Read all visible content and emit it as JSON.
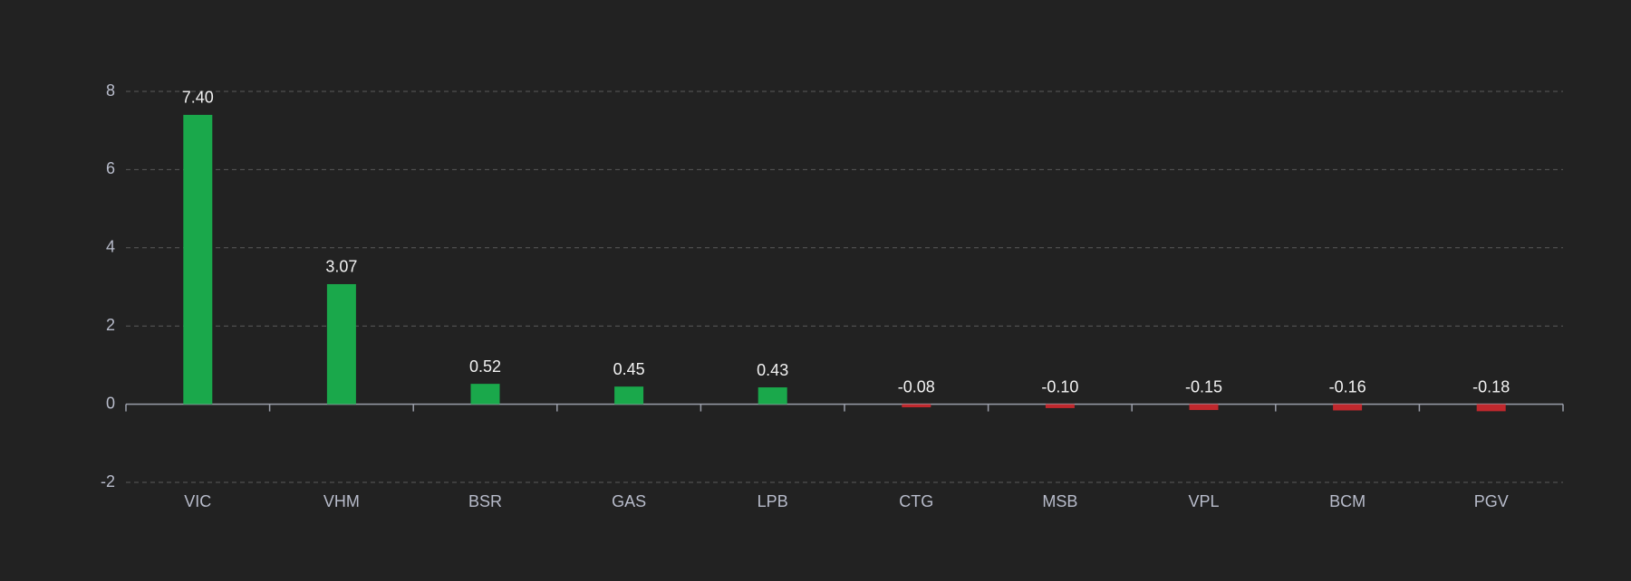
{
  "chart_data": {
    "type": "bar",
    "categories": [
      "VIC",
      "VHM",
      "BSR",
      "GAS",
      "LPB",
      "CTG",
      "MSB",
      "VPL",
      "BCM",
      "PGV"
    ],
    "values": [
      7.4,
      3.07,
      0.52,
      0.45,
      0.43,
      -0.08,
      -0.1,
      -0.15,
      -0.16,
      -0.18
    ],
    "value_labels": [
      "7.40",
      "3.07",
      "0.52",
      "0.45",
      "0.43",
      "-0.08",
      "-0.10",
      "-0.15",
      "-0.16",
      "-0.18"
    ],
    "positive_color": "#1aa84b",
    "negative_color": "#c0282d",
    "ylim": [
      -2,
      8
    ],
    "yticks": [
      -2,
      0,
      2,
      4,
      6,
      8
    ],
    "grid": true
  }
}
